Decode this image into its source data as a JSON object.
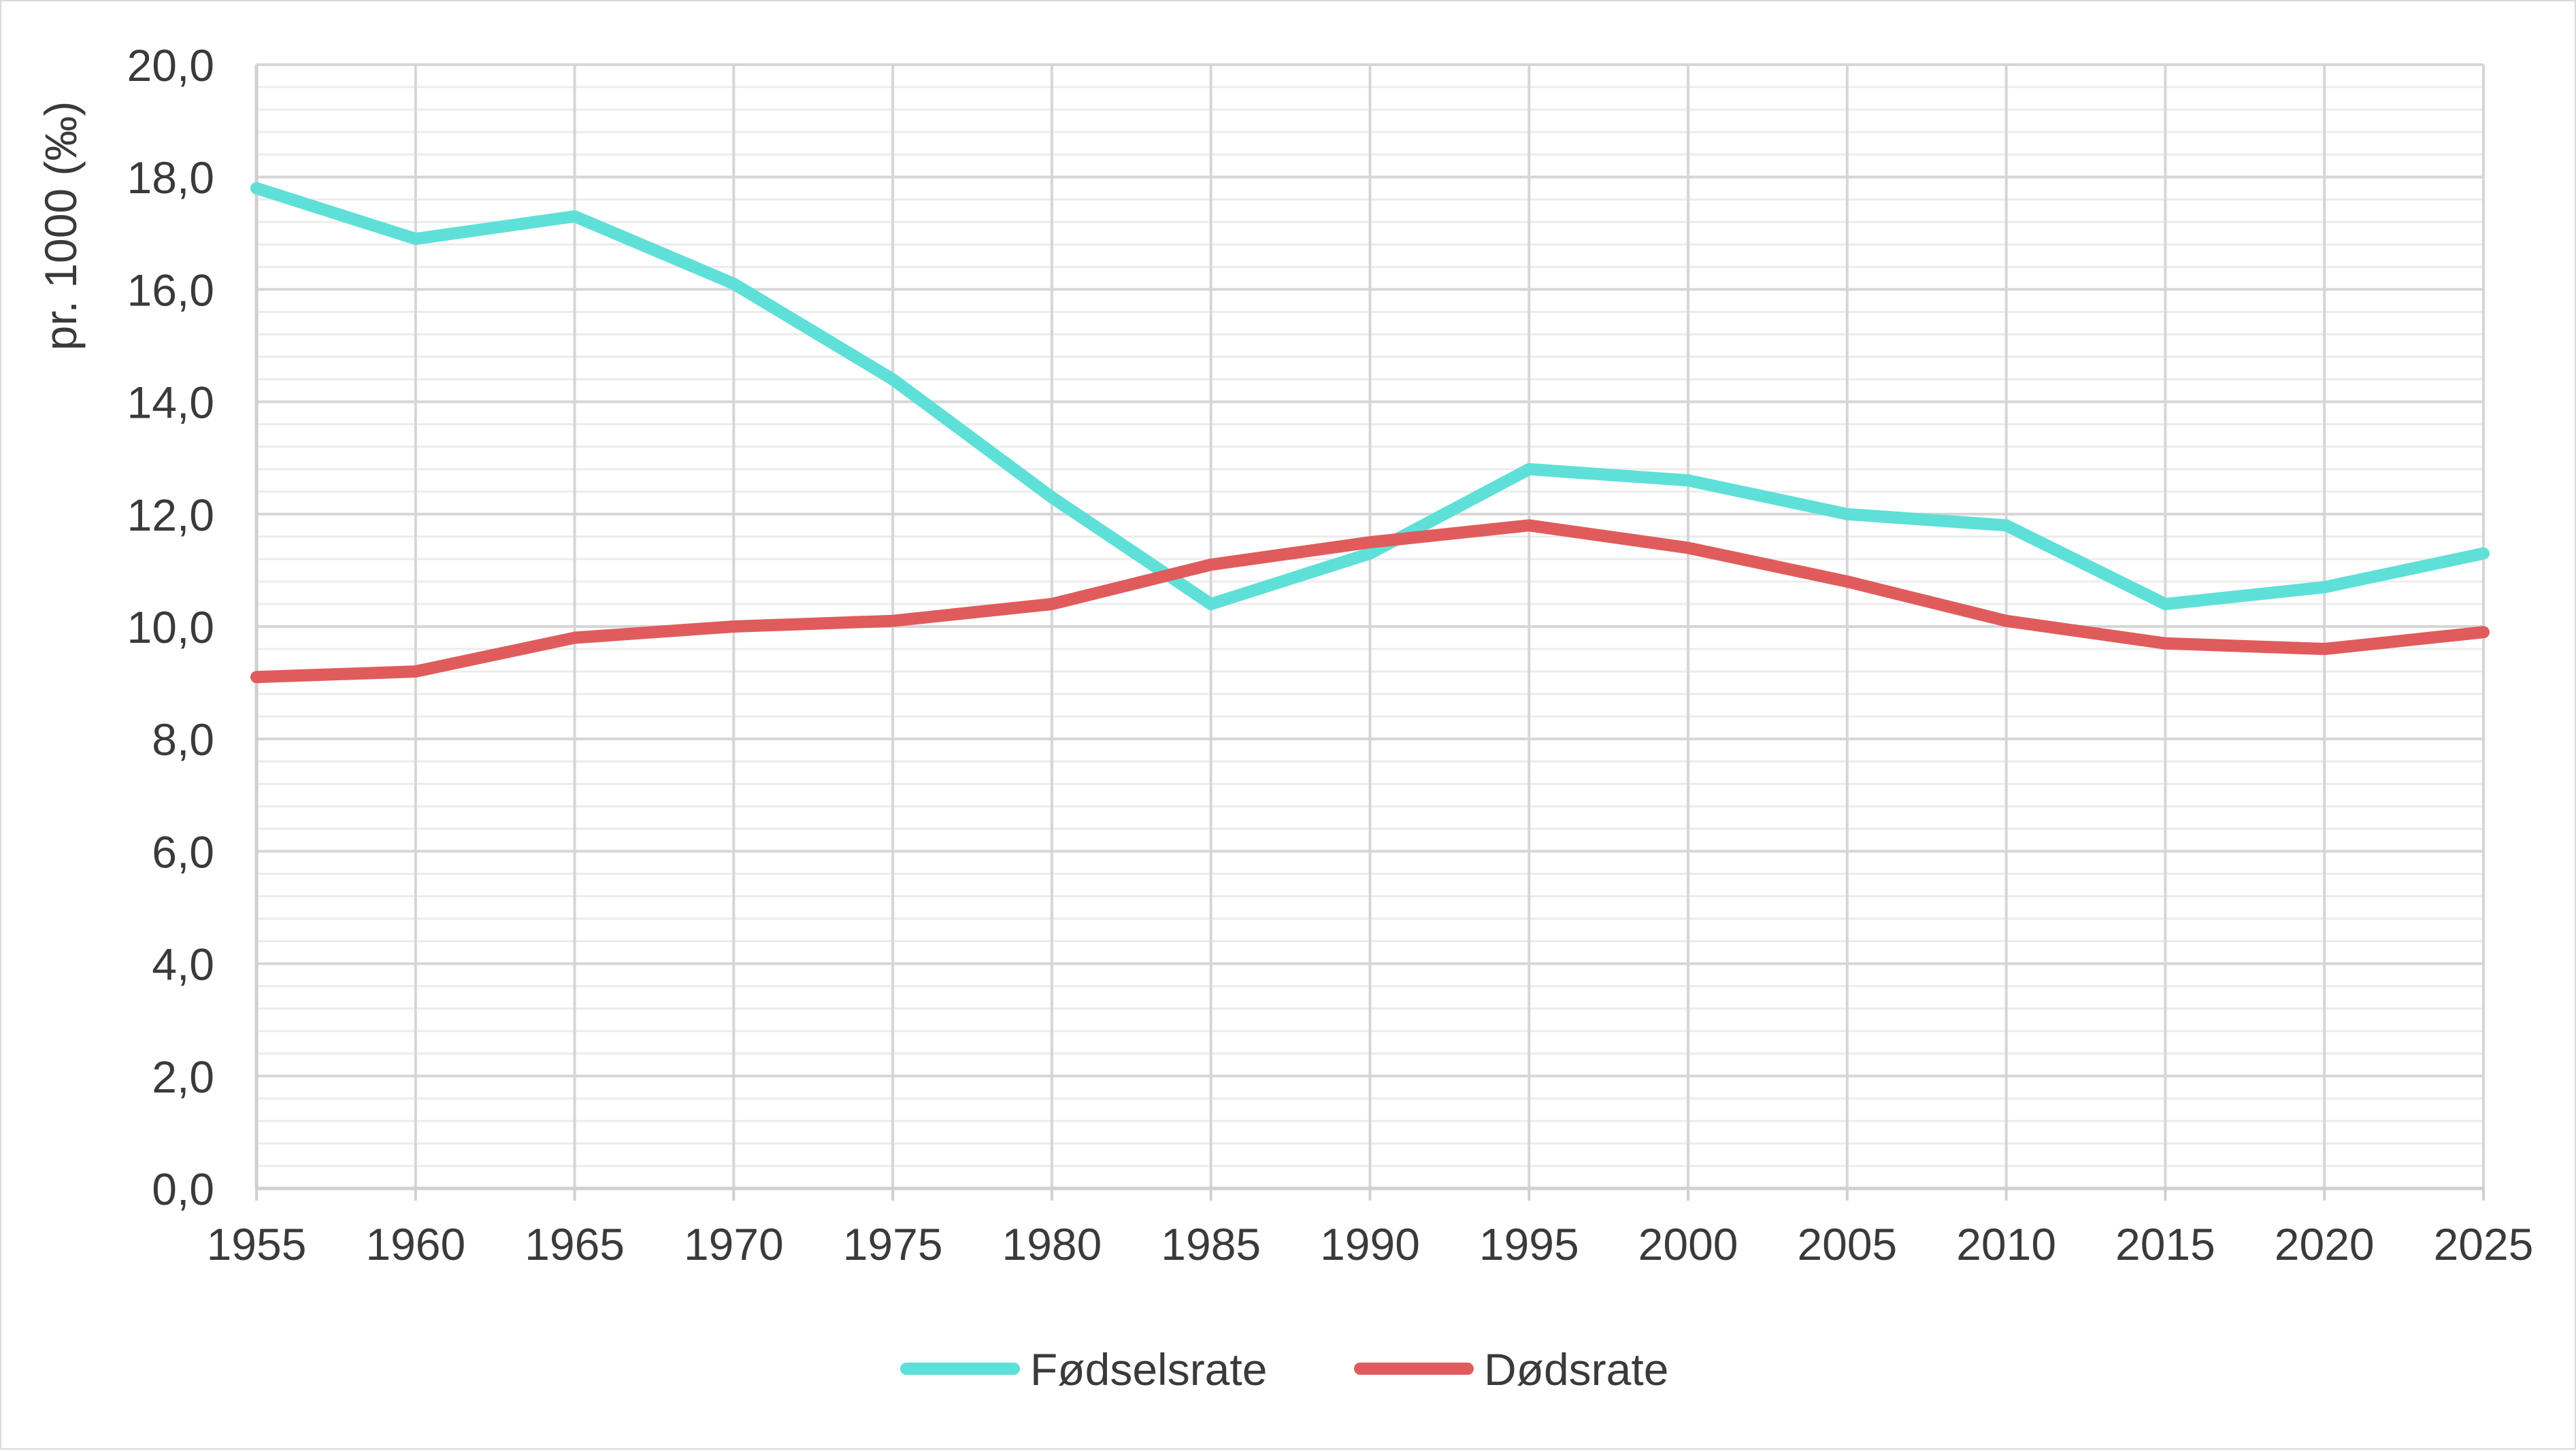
{
  "chart_data": {
    "type": "line",
    "title": "",
    "xlabel": "",
    "ylabel": "pr. 1000 (‰)",
    "x": [
      1955,
      1960,
      1965,
      1970,
      1975,
      1980,
      1985,
      1990,
      1995,
      2000,
      2005,
      2010,
      2015,
      2020,
      2025
    ],
    "x_tick_labels": [
      "1955",
      "1960",
      "1965",
      "1970",
      "1975",
      "1980",
      "1985",
      "1990",
      "1995",
      "2000",
      "2005",
      "2010",
      "2015",
      "2020",
      "2025"
    ],
    "y_tick_labels": [
      "0,0",
      "2,0",
      "4,0",
      "6,0",
      "8,0",
      "10,0",
      "12,0",
      "14,0",
      "16,0",
      "18,0",
      "20,0"
    ],
    "ylim": [
      0,
      20
    ],
    "y_major_step": 2,
    "y_minor_step": 0.4,
    "grid": true,
    "legend_position": "bottom",
    "series": [
      {
        "name": "Fødselsrate",
        "color": "#5ee0d8",
        "values": [
          17.8,
          16.9,
          17.3,
          16.1,
          14.4,
          12.3,
          10.4,
          11.3,
          12.8,
          12.6,
          12.0,
          11.8,
          10.4,
          10.7,
          11.3
        ]
      },
      {
        "name": "Dødsrate",
        "color": "#e05c5c",
        "values": [
          9.1,
          9.2,
          9.8,
          10.0,
          10.1,
          10.4,
          11.1,
          11.5,
          11.8,
          11.4,
          10.8,
          10.1,
          9.7,
          9.6,
          9.9
        ]
      }
    ]
  }
}
